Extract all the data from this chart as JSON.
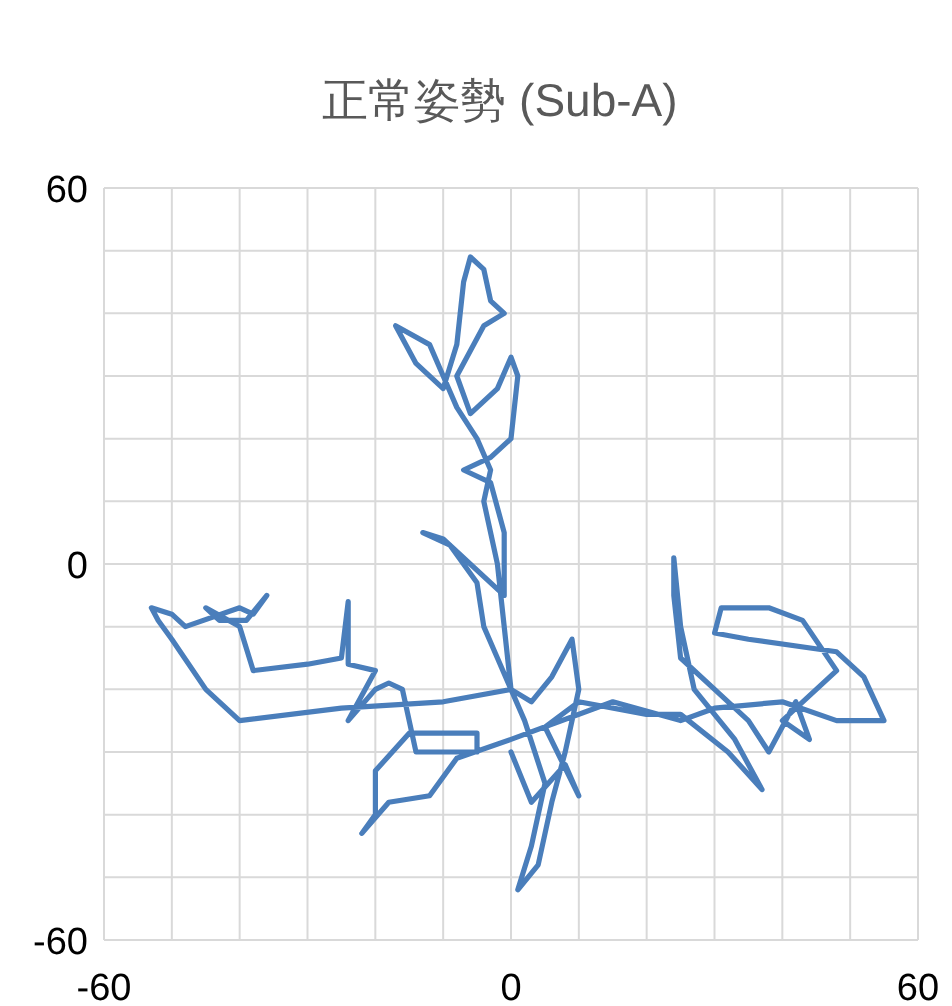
{
  "chart_data": {
    "type": "line",
    "title": "正常姿勢 (Sub-A)",
    "xlim": [
      -60,
      60
    ],
    "ylim": [
      -60,
      60
    ],
    "xticks": [
      -60,
      0,
      60
    ],
    "yticks": [
      -60,
      0,
      60
    ],
    "grid": true,
    "series": [
      {
        "color": "#4a7ebb",
        "x": [
          0,
          2,
          5,
          3,
          1,
          4,
          6,
          8,
          10,
          9,
          6,
          3,
          0,
          -1,
          -2,
          -3,
          -4,
          -3,
          -5,
          -8,
          -10,
          -12,
          -17,
          -14,
          -10,
          -8,
          -7,
          -6,
          -4,
          -3,
          -1,
          -4,
          -8,
          -6,
          -2,
          0,
          1,
          0,
          -3,
          -7,
          -3,
          -1,
          -1,
          -10,
          -13,
          -9,
          -5,
          -4,
          -2,
          0,
          -10,
          -25,
          -40,
          -45,
          -50,
          -52,
          -53,
          -50,
          -48,
          -40,
          -38,
          -36,
          -39,
          -43,
          -45,
          -40,
          -38,
          -30,
          -25,
          -24,
          -24,
          -20,
          -24,
          -20,
          -18,
          -16,
          -14,
          -5,
          -5,
          -15,
          -20,
          -20,
          -22,
          -18,
          -12,
          -8,
          0,
          15,
          25,
          30,
          40,
          48,
          55,
          52,
          48,
          35,
          30,
          31,
          38,
          43,
          48,
          40,
          44,
          42,
          38,
          35,
          30,
          25,
          24,
          24,
          25,
          27,
          33,
          37,
          32,
          25,
          20,
          10,
          5,
          10,
          8,
          3,
          0
        ],
        "values": [
          -20,
          -25,
          -35,
          -45,
          -52,
          -48,
          -38,
          -30,
          -20,
          -12,
          -18,
          -22,
          -20,
          -10,
          0,
          5,
          10,
          15,
          20,
          25,
          30,
          35,
          38,
          32,
          28,
          35,
          45,
          49,
          47,
          42,
          40,
          38,
          30,
          24,
          28,
          33,
          30,
          20,
          17,
          15,
          13,
          5,
          -5,
          4,
          5,
          3,
          -3,
          -10,
          -15,
          -20,
          -22,
          -23,
          -25,
          -20,
          -12,
          -9,
          -7,
          -8,
          -10,
          -7,
          -8,
          -5,
          -9,
          -9,
          -7,
          -10,
          -17,
          -16,
          -15,
          -6,
          -16,
          -17,
          -25,
          -20,
          -19,
          -20,
          -30,
          -30,
          -27,
          -27,
          -33,
          -40,
          -43,
          -38,
          -37,
          -31,
          -28,
          -22,
          -25,
          -23,
          -22,
          -25,
          -25,
          -18,
          -14,
          -12,
          -11,
          -7,
          -7,
          -9,
          -17,
          -25,
          -28,
          -22,
          -30,
          -25,
          -20,
          -15,
          -5,
          1,
          -10,
          -20,
          -28,
          -36,
          -30,
          -24,
          -24,
          -22,
          -26,
          -37,
          -32,
          -38,
          -30
        ]
      }
    ]
  }
}
